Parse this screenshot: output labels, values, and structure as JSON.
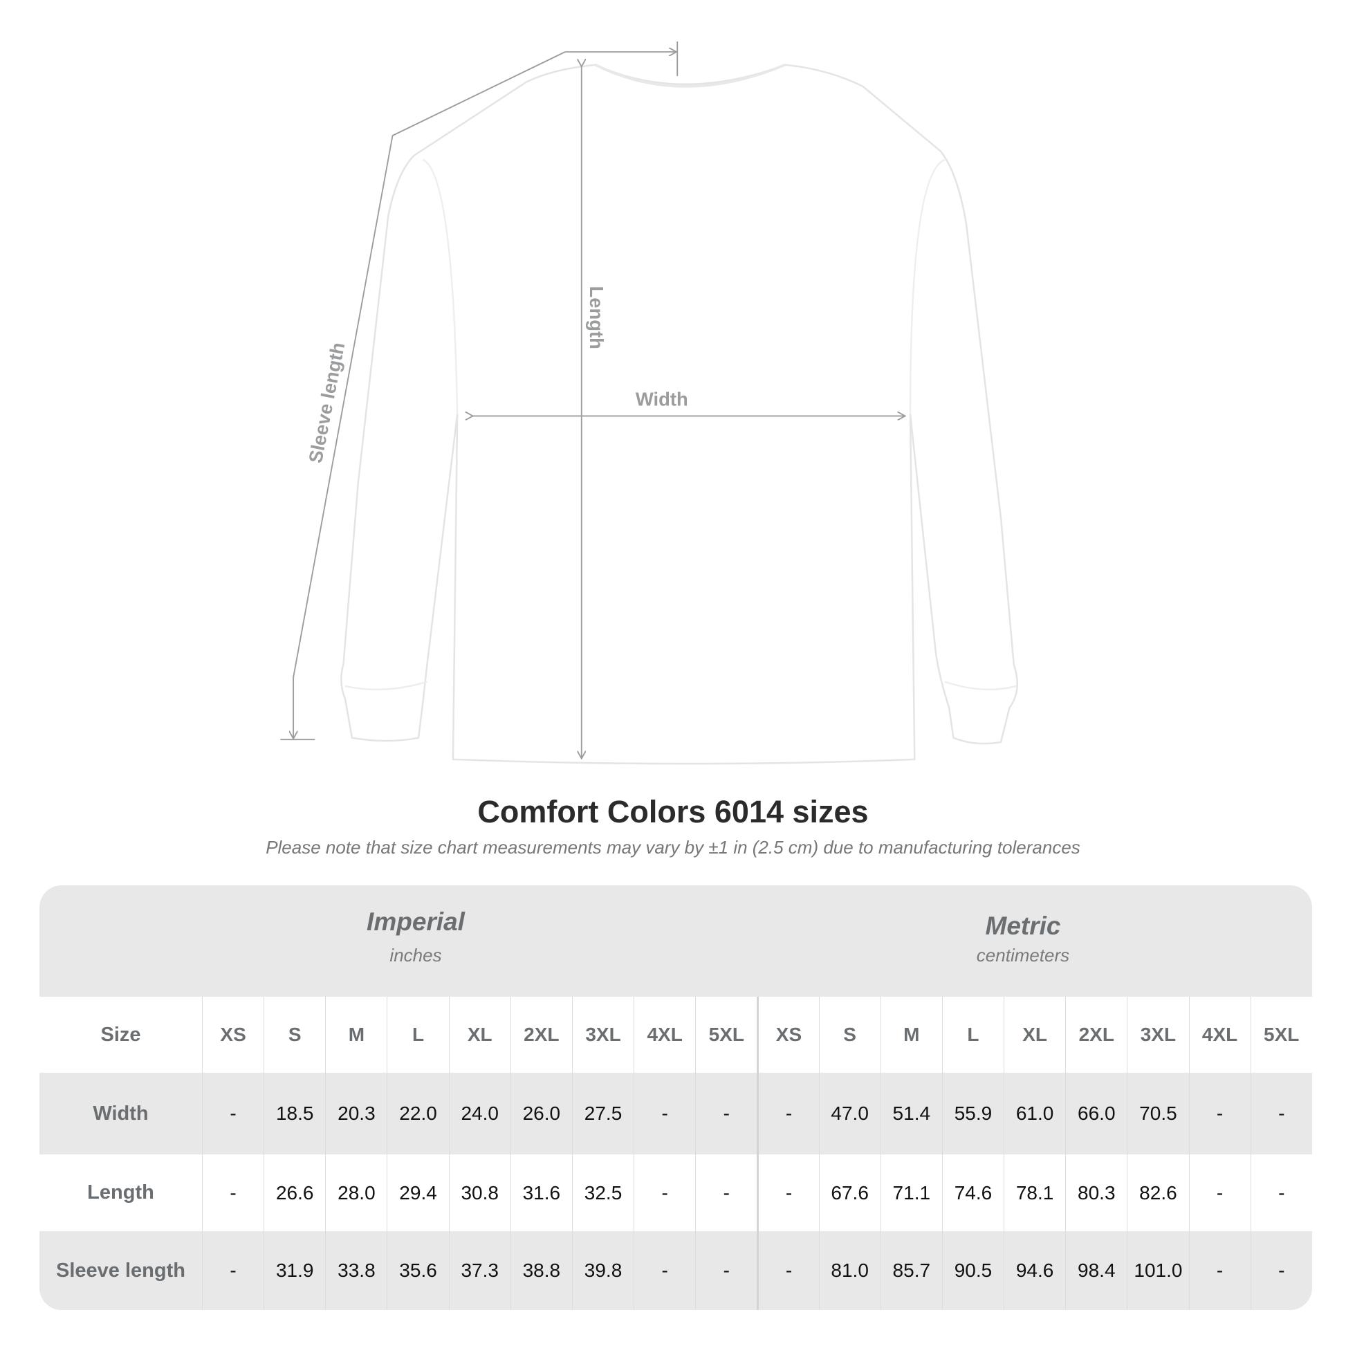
{
  "diagram": {
    "labels": {
      "sleeve": "Sleeve length",
      "length": "Length",
      "width": "Width"
    },
    "colors": {
      "line": "#9a9c9e",
      "shirt": "#ffffff",
      "shirt_outline": "#e2e4e6"
    }
  },
  "title": "Comfort Colors 6014 sizes",
  "subtitle": "Please note that size chart measurements may vary by ±1 in (2.5 cm) due to manufacturing tolerances",
  "table": {
    "imperial": {
      "name": "Imperial",
      "unit": "inches"
    },
    "metric": {
      "name": "Metric",
      "unit": "centimeters"
    },
    "size_label": "Size",
    "sizes": [
      "XS",
      "S",
      "M",
      "L",
      "XL",
      "2XL",
      "3XL",
      "4XL",
      "5XL"
    ],
    "rows": [
      {
        "label": "Width",
        "imperial": [
          "-",
          "18.5",
          "20.3",
          "22.0",
          "24.0",
          "26.0",
          "27.5",
          "-",
          "-"
        ],
        "metric": [
          "-",
          "47.0",
          "51.4",
          "55.9",
          "61.0",
          "66.0",
          "70.5",
          "-",
          "-"
        ]
      },
      {
        "label": "Length",
        "imperial": [
          "-",
          "26.6",
          "28.0",
          "29.4",
          "30.8",
          "31.6",
          "32.5",
          "-",
          "-"
        ],
        "metric": [
          "-",
          "67.6",
          "71.1",
          "74.6",
          "78.1",
          "80.3",
          "82.6",
          "-",
          "-"
        ]
      },
      {
        "label": "Sleeve length",
        "imperial": [
          "-",
          "31.9",
          "33.8",
          "35.6",
          "37.3",
          "38.8",
          "39.8",
          "-",
          "-"
        ],
        "metric": [
          "-",
          "81.0",
          "85.7",
          "90.5",
          "94.6",
          "98.4",
          "101.0",
          "-",
          "-"
        ]
      }
    ]
  }
}
